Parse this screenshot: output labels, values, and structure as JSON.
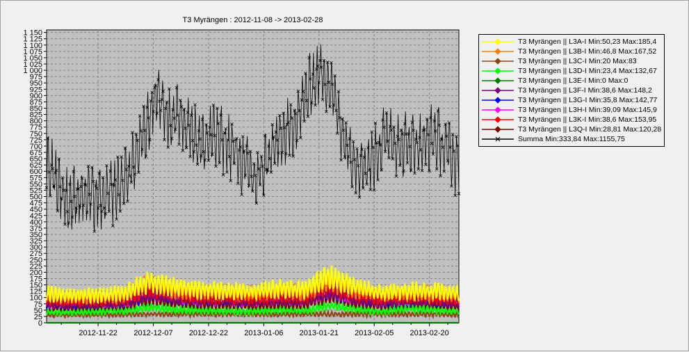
{
  "chart_data": {
    "type": "line",
    "title": "T3 Myrängen : 2012-11-08 -> 2013-02-28",
    "xlabel": "",
    "ylabel": "",
    "xlim": [
      "2012-11-08",
      "2013-02-28"
    ],
    "ylim": [
      0,
      1160
    ],
    "grid": true,
    "background": "#c0c0c0",
    "legend_position": "right",
    "y_ticks": [
      0,
      25,
      50,
      75,
      100,
      125,
      150,
      175,
      200,
      225,
      250,
      275,
      300,
      325,
      350,
      375,
      400,
      425,
      450,
      475,
      500,
      525,
      550,
      575,
      600,
      625,
      650,
      675,
      700,
      725,
      750,
      775,
      800,
      825,
      850,
      875,
      900,
      925,
      950,
      975,
      1000,
      1025,
      1050,
      1075,
      1100,
      1125,
      1150
    ],
    "y_tick_labels": [
      "0",
      "25",
      "50",
      "75",
      "100",
      "125",
      "150",
      "175",
      "200",
      "225",
      "250",
      "275",
      "300",
      "325",
      "350",
      "375",
      "400",
      "425",
      "450",
      "475",
      "500",
      "525",
      "550",
      "575",
      "600",
      "625",
      "650",
      "675",
      "700",
      "725",
      "750",
      "775",
      "800",
      "825",
      "850",
      "875",
      "900",
      "925",
      "950",
      "975",
      "1 000",
      "1 025",
      "1 050",
      "1 075",
      "1 100",
      "1 125",
      "1 150"
    ],
    "x_ticks": [
      "2012-11-22",
      "2012-12-07",
      "2012-12-22",
      "2013-01-06",
      "2013-01-21",
      "2013-02-05",
      "2013-02-20"
    ],
    "x_tick_labels": [
      "2012-11-22",
      "2012-12-07",
      "2012-12-22",
      "2013-01-06",
      "2013-01-21",
      "2013-02-05",
      "2013-02-20"
    ],
    "x_minor_ticks": [
      "2012-11-12",
      "2012-11-17",
      "2012-11-27",
      "2012-12-02",
      "2012-12-12",
      "2012-12-17",
      "2012-12-27",
      "2013-01-01",
      "2013-01-11",
      "2013-01-16",
      "2013-01-26",
      "2013-01-31",
      "2013-02-10",
      "2013-02-15",
      "2013-02-25"
    ],
    "series": [
      {
        "name": "T3 Myrängen || L3A-I Min:50,23 Max:185,4",
        "color": "#ffff00",
        "marker": "diamond",
        "dates": [
          "2012-11-08",
          "2012-11-15",
          "2012-11-22",
          "2012-11-29",
          "2012-12-06",
          "2012-12-13",
          "2012-12-20",
          "2012-12-27",
          "2013-01-03",
          "2013-01-10",
          "2013-01-17",
          "2013-01-24",
          "2013-01-31",
          "2013-02-07",
          "2013-02-14",
          "2013-02-21",
          "2013-02-28"
        ],
        "values": [
          115,
          108,
          110,
          118,
          165,
          140,
          132,
          128,
          122,
          135,
          130,
          182,
          140,
          120,
          128,
          125,
          118
        ]
      },
      {
        "name": "T3 Myrängen || L3B-I Min:46,8 Max:167,52",
        "color": "#ff8000",
        "marker": "diamond",
        "dates": [
          "2012-11-08",
          "2012-11-15",
          "2012-11-22",
          "2012-11-29",
          "2012-12-06",
          "2012-12-13",
          "2012-12-20",
          "2012-12-27",
          "2013-01-03",
          "2013-01-10",
          "2013-01-17",
          "2013-01-24",
          "2013-01-31",
          "2013-02-07",
          "2013-02-14",
          "2013-02-21",
          "2013-02-28"
        ],
        "values": [
          105,
          100,
          102,
          110,
          155,
          130,
          124,
          120,
          115,
          126,
          122,
          165,
          130,
          112,
          118,
          116,
          110
        ]
      },
      {
        "name": "T3 Myrängen || L3C-I Min:20 Max:83",
        "color": "#8b4513",
        "marker": "diamond",
        "dates": [
          "2012-11-08",
          "2012-12-08",
          "2013-01-08",
          "2013-02-08",
          "2013-02-28"
        ],
        "values": [
          30,
          34,
          33,
          35,
          32
        ]
      },
      {
        "name": "T3 Myrängen || L3D-I Min:23,4 Max:132,67",
        "color": "#00ff00",
        "marker": "diamond",
        "dates": [
          "2012-11-08",
          "2012-11-15",
          "2012-11-22",
          "2012-11-29",
          "2012-12-06",
          "2012-12-13",
          "2012-12-20",
          "2012-12-27",
          "2013-01-03",
          "2013-01-10",
          "2013-01-17",
          "2013-01-24",
          "2013-01-31",
          "2013-02-07",
          "2013-02-14",
          "2013-02-21",
          "2013-02-28"
        ],
        "values": [
          42,
          40,
          44,
          46,
          62,
          52,
          48,
          46,
          45,
          50,
          47,
          68,
          52,
          44,
          58,
          50,
          46
        ]
      },
      {
        "name": "T3 Myrängen || L3E-I Min:0 Max:0",
        "color": "#008000",
        "marker": "diamond",
        "dates": [
          "2012-11-08",
          "2013-02-28"
        ],
        "values": [
          0,
          0
        ]
      },
      {
        "name": "T3 Myrängen || L3F-I Min:38,6 Max:148,2",
        "color": "#800080",
        "marker": "diamond",
        "dates": [
          "2012-11-08",
          "2012-11-15",
          "2012-11-22",
          "2012-11-29",
          "2012-12-06",
          "2012-12-13",
          "2012-12-20",
          "2012-12-27",
          "2013-01-03",
          "2013-01-10",
          "2013-01-17",
          "2013-01-24",
          "2013-01-31",
          "2013-02-07",
          "2013-02-14",
          "2013-02-21",
          "2013-02-28"
        ],
        "values": [
          80,
          76,
          78,
          84,
          120,
          100,
          95,
          92,
          88,
          96,
          93,
          130,
          100,
          86,
          90,
          88,
          84
        ]
      },
      {
        "name": "T3 Myrängen || L3G-I Min:35,8 Max:142,77",
        "color": "#0000ff",
        "marker": "diamond",
        "dates": [
          "2012-11-08",
          "2012-11-15",
          "2012-11-22",
          "2012-11-29",
          "2012-12-06",
          "2012-12-13",
          "2012-12-20",
          "2012-12-27",
          "2013-01-03",
          "2013-01-10",
          "2013-01-17",
          "2013-01-24",
          "2013-01-31",
          "2013-02-07",
          "2013-02-14",
          "2013-02-21",
          "2013-02-28"
        ],
        "values": [
          78,
          74,
          76,
          82,
          118,
          98,
          93,
          90,
          86,
          94,
          91,
          128,
          98,
          84,
          88,
          86,
          82
        ]
      },
      {
        "name": "T3 Myrängen || L3H-I Min:39,09 Max:145,9",
        "color": "#ff00ff",
        "marker": "diamond",
        "dates": [
          "2012-11-08",
          "2012-11-15",
          "2012-11-22",
          "2012-11-29",
          "2012-12-06",
          "2012-12-13",
          "2012-12-20",
          "2012-12-27",
          "2013-01-03",
          "2013-01-10",
          "2013-01-17",
          "2013-01-24",
          "2013-01-31",
          "2013-02-07",
          "2013-02-14",
          "2013-02-21",
          "2013-02-28"
        ],
        "values": [
          82,
          78,
          80,
          86,
          122,
          102,
          97,
          94,
          90,
          98,
          95,
          132,
          102,
          88,
          92,
          90,
          86
        ]
      },
      {
        "name": "T3 Myrängen || L3K-I Min:38,6 Max:153,95",
        "color": "#ff0000",
        "marker": "diamond",
        "dates": [
          "2012-11-08",
          "2012-11-15",
          "2012-11-22",
          "2012-11-29",
          "2012-12-06",
          "2012-12-13",
          "2012-12-20",
          "2012-12-27",
          "2013-01-03",
          "2013-01-10",
          "2013-01-17",
          "2013-01-24",
          "2013-01-31",
          "2013-02-07",
          "2013-02-14",
          "2013-02-21",
          "2013-02-28"
        ],
        "values": [
          92,
          88,
          90,
          96,
          140,
          115,
          108,
          104,
          100,
          110,
          106,
          150,
          115,
          98,
          104,
          100,
          95
        ]
      },
      {
        "name": "T3 Myrängen || L3Q-I Min:28,81 Max:120,28",
        "color": "#800000",
        "marker": "diamond",
        "dates": [
          "2012-11-08",
          "2012-11-15",
          "2012-11-22",
          "2012-11-29",
          "2012-12-06",
          "2012-12-13",
          "2012-12-20",
          "2012-12-27",
          "2013-01-03",
          "2013-01-10",
          "2013-01-17",
          "2013-01-24",
          "2013-01-31",
          "2013-02-07",
          "2013-02-14",
          "2013-02-21",
          "2013-02-28"
        ],
        "values": [
          62,
          58,
          60,
          64,
          95,
          78,
          72,
          70,
          67,
          74,
          71,
          105,
          78,
          66,
          70,
          68,
          64
        ]
      },
      {
        "name": "Summa Min:333,84 Max:1155,75",
        "color": "#000000",
        "marker": "x",
        "dates": [
          "2012-11-08",
          "2012-11-11",
          "2012-11-14",
          "2012-11-17",
          "2012-11-20",
          "2012-11-23",
          "2012-11-26",
          "2012-11-29",
          "2012-12-02",
          "2012-12-05",
          "2012-12-08",
          "2012-12-11",
          "2012-12-14",
          "2012-12-17",
          "2012-12-20",
          "2012-12-23",
          "2012-12-26",
          "2012-12-29",
          "2013-01-01",
          "2013-01-04",
          "2013-01-07",
          "2013-01-10",
          "2013-01-13",
          "2013-01-16",
          "2013-01-19",
          "2013-01-22",
          "2013-01-25",
          "2013-01-28",
          "2013-01-31",
          "2013-02-03",
          "2013-02-06",
          "2013-02-09",
          "2013-02-12",
          "2013-02-15",
          "2013-02-18",
          "2013-02-21",
          "2013-02-24",
          "2013-02-27"
        ],
        "values": [
          640,
          560,
          470,
          510,
          500,
          480,
          520,
          560,
          650,
          760,
          920,
          800,
          830,
          780,
          700,
          740,
          720,
          680,
          620,
          560,
          650,
          720,
          760,
          840,
          950,
          1000,
          900,
          720,
          640,
          620,
          680,
          760,
          690,
          720,
          700,
          740,
          700,
          640
        ]
      }
    ]
  }
}
